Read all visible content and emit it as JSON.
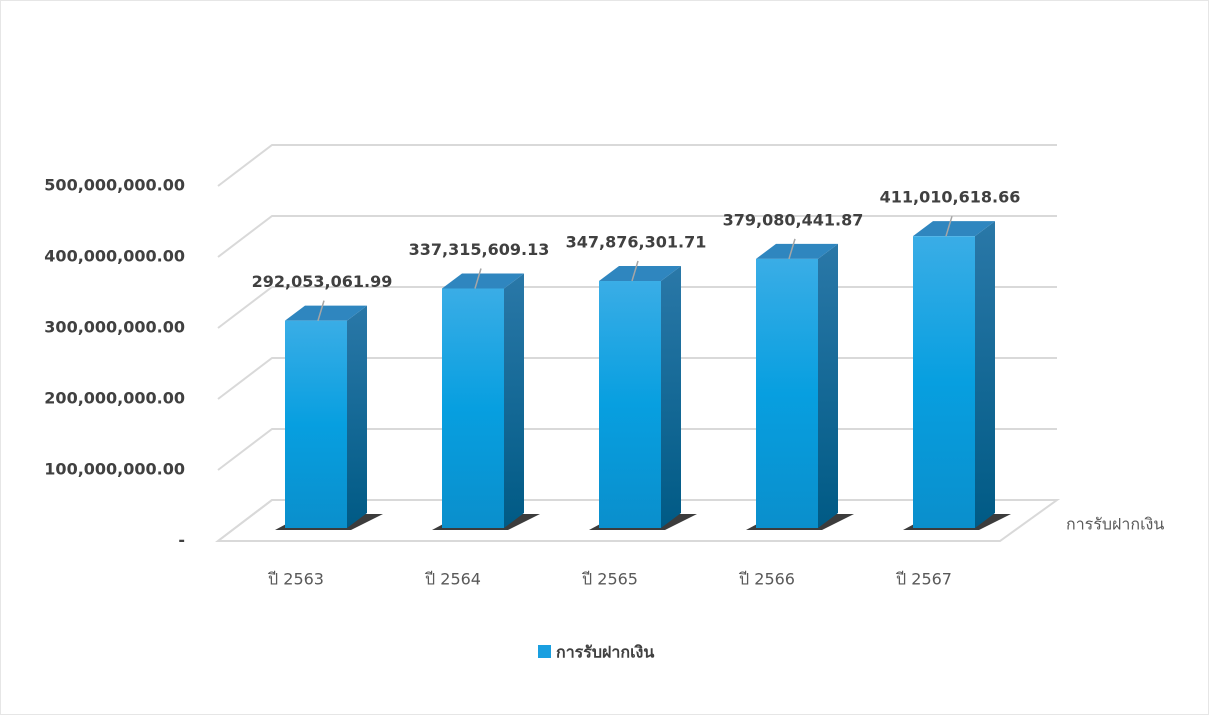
{
  "chart_data": {
    "type": "bar3d",
    "categories": [
      "ปี 2563",
      "ปี 2564",
      "ปี 2565",
      "ปี 2566",
      "ปี 2567"
    ],
    "series": [
      {
        "name": "การรับฝากเงิน",
        "color": "#1a9fe0",
        "values": [
          292053061.99,
          337315609.13,
          347876301.71,
          379080441.87,
          411010618.66
        ],
        "value_labels": [
          "292,053,061.99",
          "337,315,609.13",
          "347,876,301.71",
          "379,080,441.87",
          "411,010,618.66"
        ]
      }
    ],
    "ylim": [
      0,
      500000000
    ],
    "yticks": [
      {
        "value": 0,
        "label": "-"
      },
      {
        "value": 100000000,
        "label": "100,000,000.00"
      },
      {
        "value": 200000000,
        "label": "200,000,000.00"
      },
      {
        "value": 300000000,
        "label": "300,000,000.00"
      },
      {
        "value": 400000000,
        "label": "400,000,000.00"
      },
      {
        "value": 500000000,
        "label": "500,000,000.00"
      }
    ],
    "grid": true,
    "legend": "bottom"
  }
}
